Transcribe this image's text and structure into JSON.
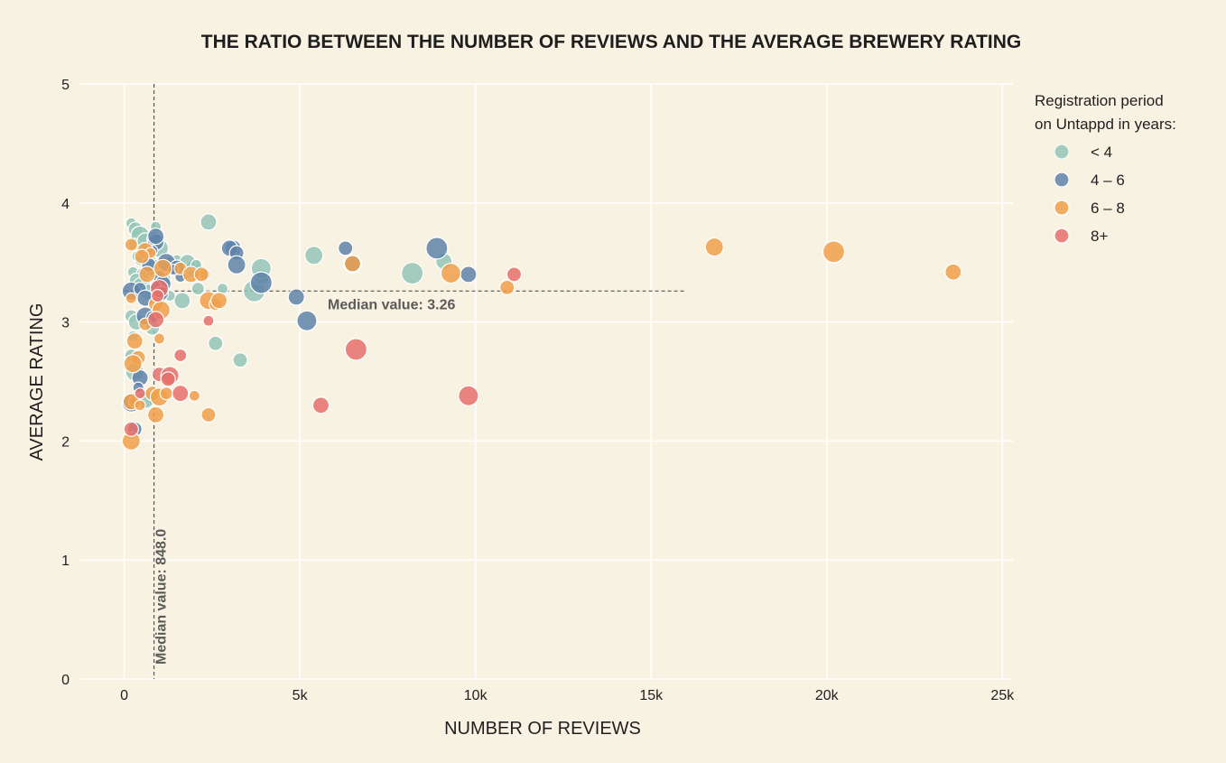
{
  "chart_data": {
    "type": "scatter",
    "title": "THE RATIO BETWEEN THE NUMBER OF REVIEWS AND THE AVERAGE BREWERY RATING",
    "xlabel": "NUMBER OF REVIEWS",
    "ylabel": "AVERAGE RATING",
    "xlim": [
      -1300,
      25300
    ],
    "ylim": [
      0,
      5
    ],
    "x_ticks": [
      {
        "value": 0,
        "label": "0"
      },
      {
        "value": 5000,
        "label": "5k"
      },
      {
        "value": 10000,
        "label": "10k"
      },
      {
        "value": 15000,
        "label": "15k"
      },
      {
        "value": 20000,
        "label": "20k"
      },
      {
        "value": 25000,
        "label": "25k"
      }
    ],
    "y_ticks": [
      {
        "value": 0,
        "label": "0"
      },
      {
        "value": 1,
        "label": "1"
      },
      {
        "value": 2,
        "label": "2"
      },
      {
        "value": 3,
        "label": "3"
      },
      {
        "value": 4,
        "label": "4"
      },
      {
        "value": 5,
        "label": "5"
      }
    ],
    "grid": true,
    "median_x": {
      "value": 848,
      "label": "Median value: 848.0",
      "y_range": [
        0,
        5
      ]
    },
    "median_y": {
      "value": 3.26,
      "label": "Median value: 3.26",
      "x_range": [
        0,
        16000
      ]
    },
    "legend": {
      "title_lines": [
        "Registration period",
        "on Untappd in years:"
      ],
      "position": "top-right"
    },
    "series": [
      {
        "name": "< 4",
        "color": "#94c6b7",
        "points": [
          [
            200,
            3.83
          ],
          [
            320,
            3.78
          ],
          [
            450,
            3.73
          ],
          [
            300,
            3.65
          ],
          [
            600,
            3.68
          ],
          [
            900,
            3.8
          ],
          [
            850,
            3.7
          ],
          [
            1000,
            3.62
          ],
          [
            400,
            3.55
          ],
          [
            700,
            3.5
          ],
          [
            250,
            3.42
          ],
          [
            550,
            3.4
          ],
          [
            850,
            3.45
          ],
          [
            1100,
            3.42
          ],
          [
            1300,
            3.48
          ],
          [
            1500,
            3.52
          ],
          [
            1750,
            3.42
          ],
          [
            2000,
            3.45
          ],
          [
            2100,
            3.28
          ],
          [
            1650,
            3.18
          ],
          [
            1300,
            3.22
          ],
          [
            350,
            3.35
          ],
          [
            500,
            3.3
          ],
          [
            200,
            3.05
          ],
          [
            350,
            3.0
          ],
          [
            250,
            2.88
          ],
          [
            800,
            2.95
          ],
          [
            300,
            2.58
          ],
          [
            200,
            2.72
          ],
          [
            2400,
            3.84
          ],
          [
            2800,
            3.28
          ],
          [
            2600,
            2.82
          ],
          [
            3700,
            3.26
          ],
          [
            3900,
            3.38
          ],
          [
            3900,
            3.45
          ],
          [
            3300,
            2.68
          ],
          [
            5400,
            3.56
          ],
          [
            8200,
            3.41
          ],
          [
            9100,
            3.51
          ],
          [
            700,
            3.25
          ],
          [
            450,
            3.52
          ],
          [
            1000,
            3.22
          ],
          [
            600,
            2.35
          ],
          [
            1150,
            3.36
          ],
          [
            1800,
            3.5
          ],
          [
            2050,
            3.48
          ]
        ]
      },
      {
        "name": "4 – 6",
        "color": "#5f82a9",
        "points": [
          [
            900,
            3.67
          ],
          [
            800,
            3.6
          ],
          [
            700,
            3.48
          ],
          [
            1200,
            3.5
          ],
          [
            1000,
            3.38
          ],
          [
            1100,
            3.32
          ],
          [
            1600,
            3.38
          ],
          [
            1500,
            3.46
          ],
          [
            200,
            3.26
          ],
          [
            450,
            3.28
          ],
          [
            600,
            3.2
          ],
          [
            900,
            3.3
          ],
          [
            1050,
            3.24
          ],
          [
            600,
            3.05
          ],
          [
            800,
            3.04
          ],
          [
            450,
            2.53
          ],
          [
            400,
            2.45
          ],
          [
            300,
            2.1
          ],
          [
            200,
            2.32
          ],
          [
            3100,
            3.62
          ],
          [
            3000,
            3.62
          ],
          [
            3200,
            3.58
          ],
          [
            3200,
            3.48
          ],
          [
            3900,
            3.33
          ],
          [
            4900,
            3.21
          ],
          [
            5200,
            3.01
          ],
          [
            6300,
            3.62
          ],
          [
            6500,
            3.49
          ],
          [
            8900,
            3.62
          ],
          [
            9800,
            3.4
          ],
          [
            900,
            3.72
          ],
          [
            1400,
            3.44
          ]
        ]
      },
      {
        "name": "6 – 8",
        "color": "#f0a04b",
        "points": [
          [
            200,
            3.65
          ],
          [
            600,
            3.6
          ],
          [
            750,
            3.58
          ],
          [
            500,
            3.55
          ],
          [
            1100,
            3.45
          ],
          [
            1600,
            3.45
          ],
          [
            1900,
            3.4
          ],
          [
            2300,
            3.4
          ],
          [
            2200,
            3.4
          ],
          [
            2400,
            3.18
          ],
          [
            2600,
            3.15
          ],
          [
            2700,
            3.18
          ],
          [
            200,
            3.2
          ],
          [
            900,
            3.15
          ],
          [
            1050,
            3.1
          ],
          [
            600,
            2.98
          ],
          [
            300,
            2.84
          ],
          [
            1000,
            2.86
          ],
          [
            400,
            2.7
          ],
          [
            250,
            2.65
          ],
          [
            300,
            2.33
          ],
          [
            200,
            2.33
          ],
          [
            450,
            2.3
          ],
          [
            800,
            2.4
          ],
          [
            1000,
            2.37
          ],
          [
            1200,
            2.4
          ],
          [
            900,
            2.22
          ],
          [
            2000,
            2.38
          ],
          [
            2400,
            2.22
          ],
          [
            200,
            2.0
          ],
          [
            6500,
            3.49
          ],
          [
            9300,
            3.41
          ],
          [
            10900,
            3.29
          ],
          [
            16800,
            3.63
          ],
          [
            20200,
            3.59
          ],
          [
            23600,
            3.42
          ],
          [
            650,
            3.4
          ]
        ]
      },
      {
        "name": "8+",
        "color": "#e5706b",
        "points": [
          [
            1000,
            3.28
          ],
          [
            950,
            3.22
          ],
          [
            900,
            3.02
          ],
          [
            450,
            2.4
          ],
          [
            1000,
            2.56
          ],
          [
            1300,
            2.55
          ],
          [
            1600,
            2.72
          ],
          [
            1600,
            2.4
          ],
          [
            2400,
            3.01
          ],
          [
            200,
            2.1
          ],
          [
            6600,
            2.77
          ],
          [
            5600,
            2.3
          ],
          [
            9800,
            2.38
          ],
          [
            11100,
            3.4
          ],
          [
            1250,
            2.52
          ]
        ]
      }
    ]
  }
}
